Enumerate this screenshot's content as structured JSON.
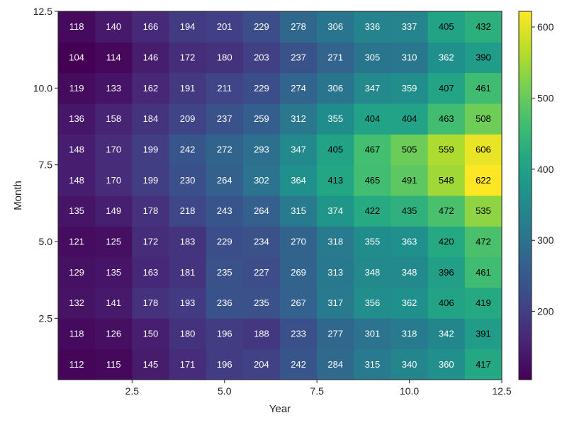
{
  "chart_data": {
    "type": "heatmap",
    "title": "",
    "xlabel": "Year",
    "ylabel": "Month",
    "x": [
      1,
      2,
      3,
      4,
      5,
      6,
      7,
      8,
      9,
      10,
      11,
      12
    ],
    "y": [
      1,
      2,
      3,
      4,
      5,
      6,
      7,
      8,
      9,
      10,
      11,
      12
    ],
    "xlim": [
      0.5,
      12.5
    ],
    "ylim": [
      0.5,
      12.5
    ],
    "x_ticks": [
      2.5,
      5.0,
      7.5,
      10.0,
      12.5
    ],
    "x_tick_labels": [
      "2.5",
      "5.0",
      "7.5",
      "10.0",
      "12.5"
    ],
    "y_ticks": [
      2.5,
      5.0,
      7.5,
      10.0,
      12.5
    ],
    "y_tick_labels": [
      "2.5",
      "5.0",
      "7.5",
      "10.0",
      "12.5"
    ],
    "values": [
      [
        112,
        115,
        145,
        171,
        196,
        204,
        242,
        284,
        315,
        340,
        360,
        417
      ],
      [
        118,
        126,
        150,
        180,
        196,
        188,
        233,
        277,
        301,
        318,
        342,
        391
      ],
      [
        132,
        141,
        178,
        193,
        236,
        235,
        267,
        317,
        356,
        362,
        406,
        419
      ],
      [
        129,
        135,
        163,
        181,
        235,
        227,
        269,
        313,
        348,
        348,
        396,
        461
      ],
      [
        121,
        125,
        172,
        183,
        229,
        234,
        270,
        318,
        355,
        363,
        420,
        472
      ],
      [
        135,
        149,
        178,
        218,
        243,
        264,
        315,
        374,
        422,
        435,
        472,
        535
      ],
      [
        148,
        170,
        199,
        230,
        264,
        302,
        364,
        413,
        465,
        491,
        548,
        622
      ],
      [
        148,
        170,
        199,
        242,
        272,
        293,
        347,
        405,
        467,
        505,
        559,
        606
      ],
      [
        136,
        158,
        184,
        209,
        237,
        259,
        312,
        355,
        404,
        404,
        463,
        508
      ],
      [
        119,
        133,
        162,
        191,
        211,
        229,
        274,
        306,
        347,
        359,
        407,
        461
      ],
      [
        104,
        114,
        146,
        172,
        180,
        203,
        237,
        271,
        305,
        310,
        362,
        390
      ],
      [
        118,
        140,
        166,
        194,
        201,
        229,
        278,
        306,
        336,
        337,
        405,
        432
      ]
    ],
    "colormap": "viridis",
    "colorbar": {
      "range": [
        104,
        622
      ],
      "ticks": [
        200,
        300,
        400,
        500,
        600
      ],
      "tick_labels": [
        "200",
        "300",
        "400",
        "500",
        "600"
      ]
    },
    "grid": false,
    "legend": "colorbar-right"
  }
}
